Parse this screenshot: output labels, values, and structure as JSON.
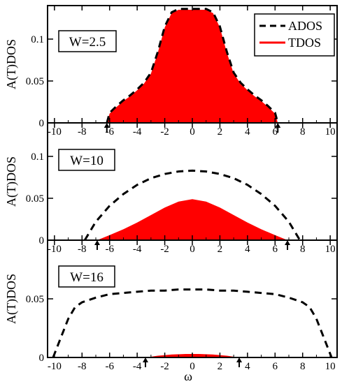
{
  "colors": {
    "tdos": "#ff0000",
    "ados": "#000000",
    "frame": "#000000"
  },
  "legend": {
    "ados_label": "ADOS",
    "tdos_label": "TDOS"
  },
  "axes": {
    "ylabel": "A(T)DOS",
    "xlabel": "ω"
  },
  "chart_data": [
    {
      "type": "area",
      "panel_label": "W=2.5",
      "xlim": [
        -10.5,
        10.5
      ],
      "ylim": [
        0,
        0.14
      ],
      "yticks": [
        0,
        0.05,
        0.1
      ],
      "ytick_labels": [
        "0",
        "0.05",
        "0.1"
      ],
      "xticks": [
        -10,
        -8,
        -6,
        -4,
        -2,
        0,
        2,
        4,
        6,
        8,
        10
      ],
      "xtick_labels": [
        "-10",
        "-8",
        "-6",
        "-4",
        "-2",
        "0",
        "2",
        "4",
        "6",
        "8",
        "10"
      ],
      "edge_arrows": [
        -6.2,
        6.2
      ],
      "series": [
        {
          "name": "ADOS",
          "style": "dashed",
          "x": [
            -6.2,
            -6.0,
            -5.5,
            -5.0,
            -4.5,
            -4.0,
            -3.5,
            -3.0,
            -2.5,
            -2.0,
            -1.5,
            -1.0,
            -0.5,
            0,
            0.5,
            1.0,
            1.5,
            2.0,
            2.5,
            3.0,
            3.5,
            4.0,
            4.5,
            5.0,
            5.5,
            6.0,
            6.2
          ],
          "y": [
            0.0,
            0.012,
            0.02,
            0.027,
            0.033,
            0.04,
            0.048,
            0.06,
            0.085,
            0.115,
            0.132,
            0.136,
            0.136,
            0.136,
            0.136,
            0.136,
            0.132,
            0.115,
            0.085,
            0.06,
            0.048,
            0.04,
            0.033,
            0.027,
            0.02,
            0.012,
            0.0
          ]
        },
        {
          "name": "TDOS",
          "style": "filled",
          "x": [
            -6.2,
            -6.0,
            -5.5,
            -5.0,
            -4.5,
            -4.0,
            -3.5,
            -3.0,
            -2.5,
            -2.0,
            -1.5,
            -1.0,
            -0.5,
            0,
            0.5,
            1.0,
            1.5,
            2.0,
            2.5,
            3.0,
            3.5,
            4.0,
            4.5,
            5.0,
            5.5,
            6.0,
            6.2
          ],
          "y": [
            0.0,
            0.011,
            0.019,
            0.026,
            0.032,
            0.039,
            0.047,
            0.059,
            0.084,
            0.114,
            0.131,
            0.135,
            0.135,
            0.135,
            0.135,
            0.135,
            0.131,
            0.114,
            0.084,
            0.059,
            0.047,
            0.039,
            0.032,
            0.026,
            0.019,
            0.011,
            0.0
          ]
        }
      ]
    },
    {
      "type": "area",
      "panel_label": "W=10",
      "xlim": [
        -10.5,
        10.5
      ],
      "ylim": [
        0,
        0.14
      ],
      "yticks": [
        0,
        0.05,
        0.1
      ],
      "ytick_labels": [
        "0",
        "0.05",
        "0.1"
      ],
      "xticks": [
        -10,
        -8,
        -6,
        -4,
        -2,
        0,
        2,
        4,
        6,
        8,
        10
      ],
      "xtick_labels": [
        "-10",
        "-8",
        "-6",
        "-4",
        "-2",
        "0",
        "2",
        "4",
        "6",
        "8",
        "10"
      ],
      "edge_arrows": [
        -6.9,
        6.9
      ],
      "series": [
        {
          "name": "ADOS",
          "style": "dashed",
          "x": [
            -7.8,
            -7.0,
            -6.0,
            -5.0,
            -4.0,
            -3.0,
            -2.0,
            -1.0,
            0,
            1.0,
            2.0,
            3.0,
            4.0,
            5.0,
            6.0,
            7.0,
            7.8
          ],
          "y": [
            0.0,
            0.022,
            0.041,
            0.055,
            0.066,
            0.074,
            0.079,
            0.082,
            0.083,
            0.082,
            0.079,
            0.074,
            0.066,
            0.055,
            0.041,
            0.022,
            0.0
          ]
        },
        {
          "name": "TDOS",
          "style": "filled",
          "x": [
            -6.9,
            -6.0,
            -5.0,
            -4.0,
            -3.0,
            -2.0,
            -1.0,
            0,
            1.0,
            2.0,
            3.0,
            4.0,
            5.0,
            6.0,
            6.9
          ],
          "y": [
            0.0,
            0.006,
            0.013,
            0.021,
            0.03,
            0.039,
            0.046,
            0.049,
            0.046,
            0.039,
            0.03,
            0.021,
            0.013,
            0.006,
            0.0
          ]
        }
      ]
    },
    {
      "type": "area",
      "panel_label": "W=16",
      "xlim": [
        -10.5,
        10.5
      ],
      "ylim": [
        0,
        0.1
      ],
      "yticks": [
        0,
        0.05
      ],
      "ytick_labels": [
        "0",
        "0.05"
      ],
      "xticks": [
        -10,
        -8,
        -6,
        -4,
        -2,
        0,
        2,
        4,
        6,
        8,
        10
      ],
      "xtick_labels": [
        "-10",
        "-8",
        "-6",
        "-4",
        "-2",
        "0",
        "2",
        "4",
        "6",
        "8",
        "10"
      ],
      "edge_arrows": [
        -3.4,
        3.4
      ],
      "series": [
        {
          "name": "ADOS",
          "style": "dashed",
          "x": [
            -10.1,
            -9.5,
            -9.0,
            -8.5,
            -8.0,
            -7.0,
            -6.0,
            -5.0,
            -4.0,
            -3.0,
            -2.0,
            -1.0,
            0,
            1.0,
            2.0,
            3.0,
            4.0,
            5.0,
            6.0,
            7.0,
            8.0,
            8.5,
            9.0,
            9.5,
            10.1
          ],
          "y": [
            0.0,
            0.018,
            0.033,
            0.043,
            0.047,
            0.051,
            0.054,
            0.055,
            0.056,
            0.057,
            0.057,
            0.058,
            0.058,
            0.058,
            0.057,
            0.057,
            0.056,
            0.055,
            0.054,
            0.051,
            0.047,
            0.043,
            0.033,
            0.018,
            0.0
          ]
        },
        {
          "name": "TDOS",
          "style": "filled",
          "x": [
            -3.4,
            -2.5,
            -1.5,
            -0.5,
            0,
            0.5,
            1.5,
            2.5,
            3.4
          ],
          "y": [
            0.0,
            0.0015,
            0.0025,
            0.003,
            0.003,
            0.003,
            0.0025,
            0.0015,
            0.0
          ]
        }
      ]
    }
  ]
}
